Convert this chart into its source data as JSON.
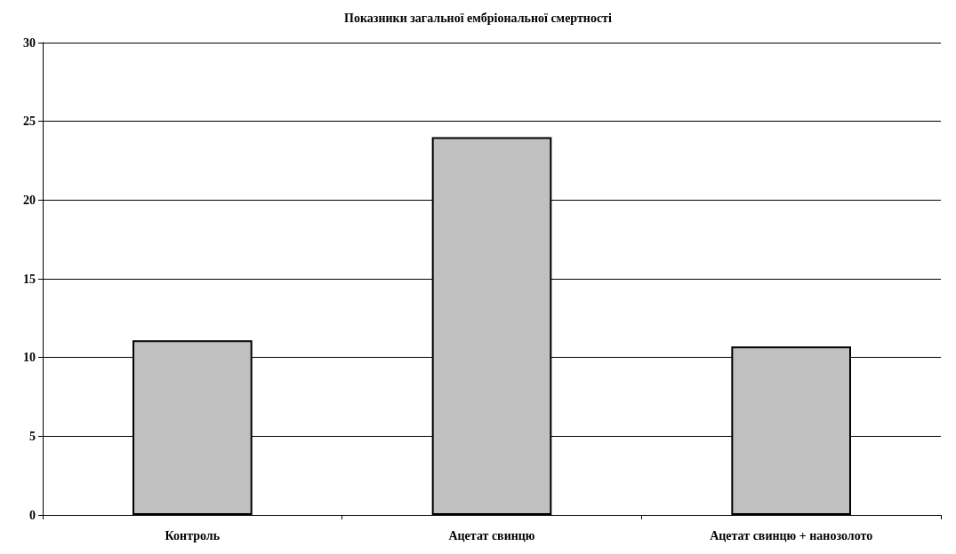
{
  "chart_data": {
    "type": "bar",
    "title": "Показники загальної ембріональної смертності",
    "categories": [
      "Контроль",
      "Ацетат свинцю",
      "Ацетат свинцю + нанозолото"
    ],
    "values": [
      11.1,
      24.0,
      10.7
    ],
    "color": "#c0c0c0",
    "ylim": [
      0,
      30
    ],
    "yticks": [
      0,
      5,
      10,
      15,
      20,
      25,
      30
    ],
    "grid": "y"
  }
}
